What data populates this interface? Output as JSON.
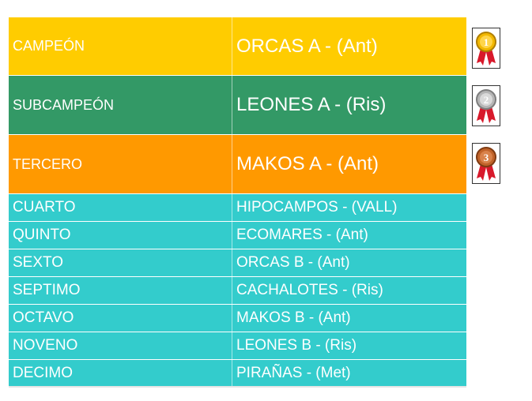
{
  "podium": [
    {
      "position": "CAMPEÓN",
      "team": "ORCAS A - (Ant)",
      "color": "#ffcc00",
      "medal": "gold-medal-icon",
      "medal_number": "1"
    },
    {
      "position": "SUBCAMPEÓN",
      "team": "LEONES A - (Ris)",
      "color": "#339966",
      "medal": "silver-medal-icon",
      "medal_number": "2"
    },
    {
      "position": "TERCERO",
      "team": "MAKOS A - (Ant)",
      "color": "#ff9900",
      "medal": "bronze-medal-icon",
      "medal_number": "3"
    }
  ],
  "rest": [
    {
      "position": "CUARTO",
      "team": "HIPOCAMPOS - (VALL)"
    },
    {
      "position": "QUINTO",
      "team": "ECOMARES - (Ant)"
    },
    {
      "position": "SEXTO",
      "team": "ORCAS B - (Ant)"
    },
    {
      "position": "SEPTIMO",
      "team": "CACHALOTES - (Ris)"
    },
    {
      "position": "OCTAVO",
      "team": "MAKOS B - (Ant)"
    },
    {
      "position": "NOVENO",
      "team": "LEONES B - (Ris)"
    },
    {
      "position": "DECIMO",
      "team": "PIRAÑAS - (Met)"
    }
  ],
  "rest_color": "#33cccc"
}
